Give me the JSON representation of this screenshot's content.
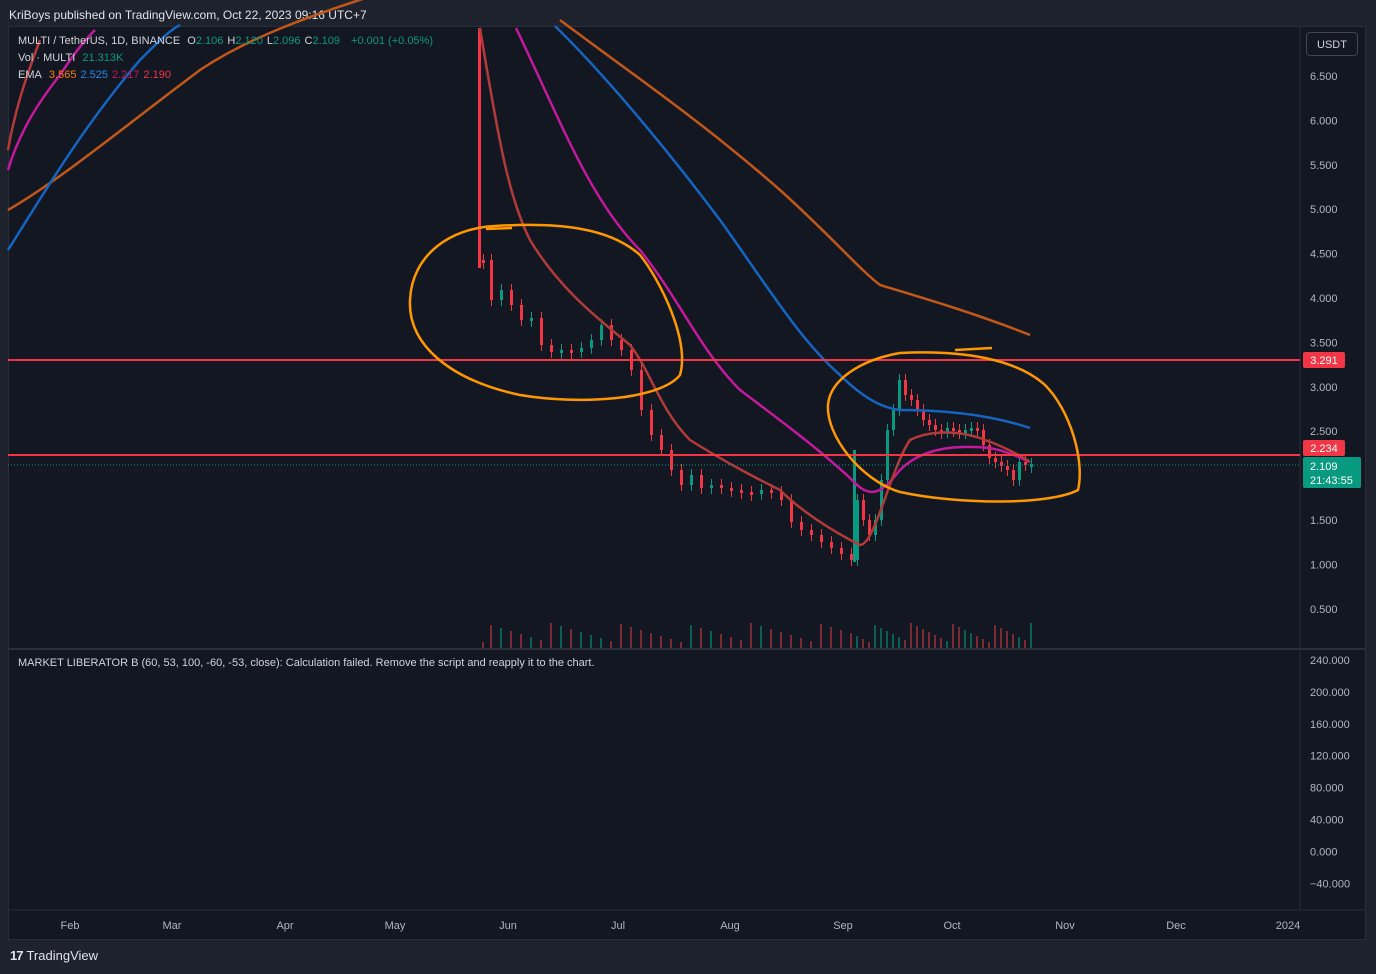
{
  "header": {
    "published": "KriBoys published on TradingView.com, Oct 22, 2023 09:16 UTC+7"
  },
  "legend": {
    "symbol": "MULTI / TetherUS, 1D, BINANCE",
    "ohlc": [
      {
        "k": "O",
        "v": "2.106"
      },
      {
        "k": "H",
        "v": "2.120"
      },
      {
        "k": "L",
        "v": "2.096"
      },
      {
        "k": "C",
        "v": "2.109"
      }
    ],
    "change": "+0.001 (+0.05%)",
    "vol_label": "Vol · MULTI",
    "vol_value": "21.313K",
    "ema_label": "EMA",
    "ema_values": [
      {
        "v": "3.565",
        "color": "#f57c00"
      },
      {
        "v": "2.525",
        "color": "#1e88e5"
      },
      {
        "v": "2.217",
        "color": "#c2185b"
      },
      {
        "v": "2.190",
        "color": "#f23645"
      }
    ]
  },
  "indicator_message": "MARKET LIBERATOR B (60, 53, 100, -60, -53, close): Calculation failed. Remove the script and reapply it to the chart.",
  "currency_button": "USDT",
  "price_axis": [
    "6.500",
    "6.000",
    "5.500",
    "5.000",
    "4.500",
    "4.000",
    "3.500",
    "3.000",
    "2.500",
    "2.000",
    "1.500",
    "1.000",
    "0.500"
  ],
  "indicator_axis": [
    "240.000",
    "200.000",
    "160.000",
    "120.000",
    "80.000",
    "40.000",
    "0.000",
    "−40.000"
  ],
  "time_axis": [
    "Feb",
    "Mar",
    "Apr",
    "May",
    "Jun",
    "Jul",
    "Aug",
    "Sep",
    "Oct",
    "Nov",
    "Dec",
    "2024"
  ],
  "price_badges": {
    "line_high": "3.291",
    "line_low": "2.234",
    "last_price": "2.109",
    "countdown": "21:43:55"
  },
  "horizontal_levels": [
    3.291,
    2.234
  ],
  "colors": {
    "up": "#089981",
    "down": "#f23645",
    "level_line": "#f23645",
    "annotation": "#ff9800",
    "ema_brown": "#c2571a",
    "ema_blue": "#1565c0",
    "ema_magenta": "#c21a9a",
    "ema_red": "#b23a3a"
  },
  "footer": {
    "brand": "TradingView"
  }
}
